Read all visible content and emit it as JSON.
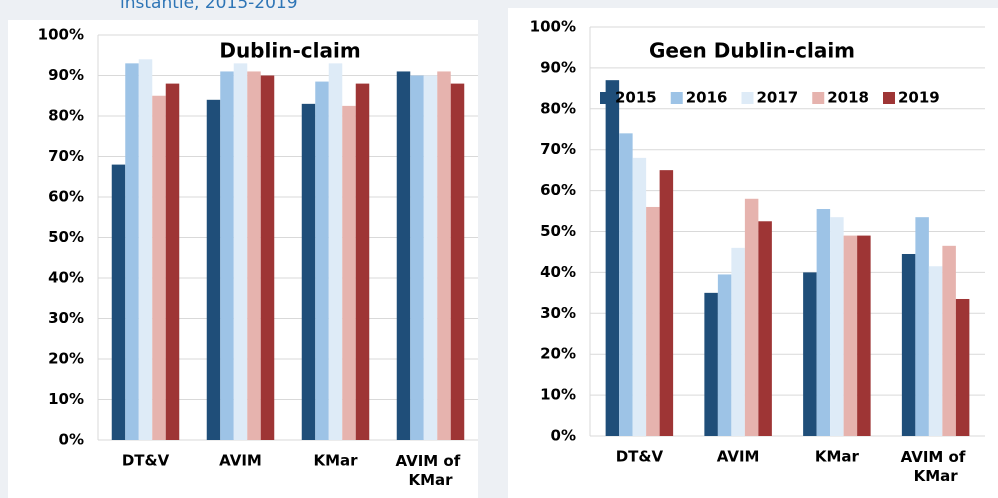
{
  "header": {
    "text": "instantie, 2015-2019"
  },
  "chart_data": [
    {
      "type": "bar",
      "title": "Dublin-claim",
      "categories": [
        "DT&V",
        "AVIM",
        "KMar",
        "AVIM of KMar"
      ],
      "series": [
        {
          "name": "2015",
          "color": "#1f4e79",
          "values": [
            68,
            84,
            83,
            91
          ]
        },
        {
          "name": "2016",
          "color": "#9dc3e6",
          "values": [
            93,
            91,
            88.5,
            90
          ]
        },
        {
          "name": "2017",
          "color": "#deebf7",
          "values": [
            94,
            93,
            93,
            90
          ]
        },
        {
          "name": "2018",
          "color": "#e6b3ae",
          "values": [
            85,
            91,
            82.5,
            91
          ]
        },
        {
          "name": "2019",
          "color": "#9e3535",
          "values": [
            88,
            90,
            88,
            88
          ]
        }
      ],
      "ylim": [
        0,
        100
      ],
      "yticks": [
        {
          "value": 0,
          "label": "0%"
        },
        {
          "value": 10,
          "label": "10%"
        },
        {
          "value": 20,
          "label": "20%"
        },
        {
          "value": 30,
          "label": "30%"
        },
        {
          "value": 40,
          "label": "40%"
        },
        {
          "value": 50,
          "label": "50%"
        },
        {
          "value": 60,
          "label": "60%"
        },
        {
          "value": 70,
          "label": "70%"
        },
        {
          "value": 80,
          "label": "80%"
        },
        {
          "value": 90,
          "label": "90%"
        },
        {
          "value": 100,
          "label": "100%"
        }
      ],
      "grid": true,
      "legend": false
    },
    {
      "type": "bar",
      "title": "Geen Dublin-claim",
      "categories": [
        "DT&V",
        "AVIM",
        "KMar",
        "AVIM of KMar"
      ],
      "series": [
        {
          "name": "2015",
          "color": "#1f4e79",
          "values": [
            87,
            35,
            40,
            44.5
          ]
        },
        {
          "name": "2016",
          "color": "#9dc3e6",
          "values": [
            74,
            39.5,
            55.5,
            53.5
          ]
        },
        {
          "name": "2017",
          "color": "#deebf7",
          "values": [
            68,
            46,
            53.5,
            41.5
          ]
        },
        {
          "name": "2018",
          "color": "#e6b3ae",
          "values": [
            56,
            58,
            49,
            46.5
          ]
        },
        {
          "name": "2019",
          "color": "#9e3535",
          "values": [
            65,
            52.5,
            49,
            33.5
          ]
        }
      ],
      "ylim": [
        0,
        100
      ],
      "yticks": [
        {
          "value": 0,
          "label": "0%"
        },
        {
          "value": 10,
          "label": "10%"
        },
        {
          "value": 20,
          "label": "20%"
        },
        {
          "value": 30,
          "label": "30%"
        },
        {
          "value": 40,
          "label": "40%"
        },
        {
          "value": 50,
          "label": "50%"
        },
        {
          "value": 60,
          "label": "60%"
        },
        {
          "value": 70,
          "label": "70%"
        },
        {
          "value": 80,
          "label": "80%"
        },
        {
          "value": 90,
          "label": "90%"
        },
        {
          "value": 100,
          "label": "100%"
        }
      ],
      "grid": true,
      "legend": "top-right"
    }
  ]
}
